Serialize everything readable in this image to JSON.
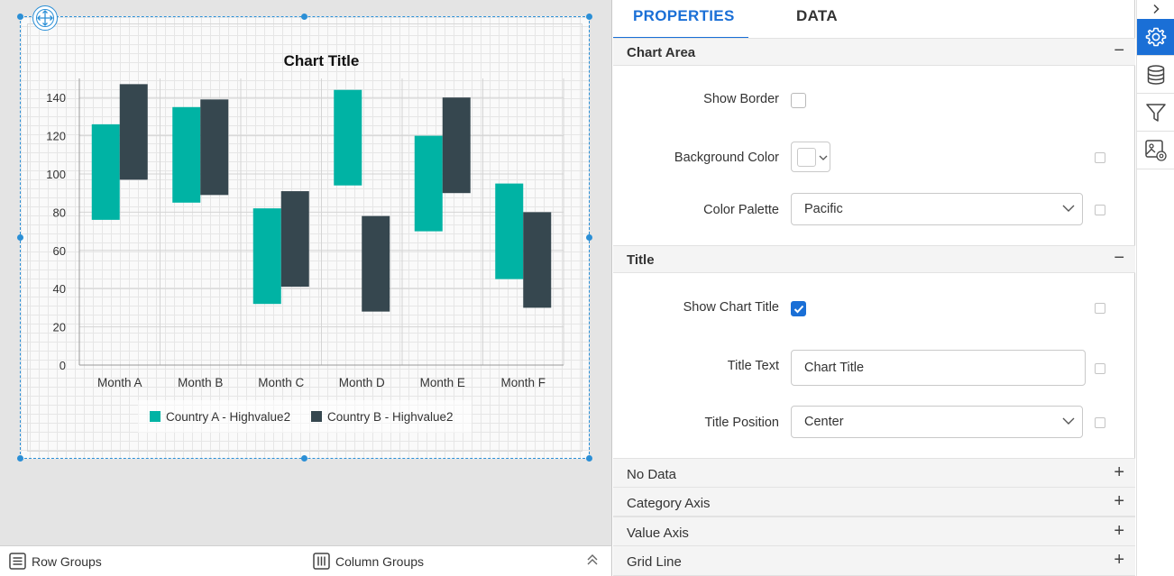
{
  "chart_data": {
    "type": "bar",
    "subtype": "range-column",
    "title": "Chart Title",
    "categories": [
      "Month A",
      "Month B",
      "Month C",
      "Month D",
      "Month E",
      "Month F"
    ],
    "series": [
      {
        "name": "Country A - Highvalue2",
        "color": "#00b3a4",
        "low": [
          76,
          85,
          32,
          94,
          70,
          45
        ],
        "high": [
          126,
          135,
          82,
          144,
          120,
          95
        ]
      },
      {
        "name": "Country B - Highvalue2",
        "color": "#36474f",
        "low": [
          97,
          89,
          41,
          28,
          90,
          30
        ],
        "high": [
          147,
          139,
          91,
          78,
          140,
          80
        ]
      }
    ],
    "yticks": [
      "0",
      "20",
      "40",
      "60",
      "80",
      "100",
      "120",
      "140"
    ],
    "ylim": [
      0,
      150
    ],
    "xlabel": "",
    "ylabel": "",
    "grid": true,
    "legend": "bottom"
  },
  "bottom_bar": {
    "row_groups": "Row Groups",
    "column_groups": "Column Groups"
  },
  "panel": {
    "tabs": {
      "properties": "PROPERTIES",
      "data": "DATA"
    },
    "sections": {
      "chart_area": "Chart Area",
      "title": "Title",
      "no_data": "No Data",
      "category_axis": "Category Axis",
      "value_axis": "Value Axis",
      "grid_line": "Grid Line"
    },
    "toggles": {
      "collapse": "−",
      "expand": "+"
    },
    "chart_area": {
      "show_border_label": "Show Border",
      "background_color_label": "Background Color",
      "background_color_value": "#ffffff",
      "color_palette_label": "Color Palette",
      "color_palette_value": "Pacific"
    },
    "title": {
      "show_chart_title_label": "Show Chart Title",
      "title_text_label": "Title Text",
      "title_text_value": "Chart Title",
      "title_position_label": "Title Position",
      "title_position_value": "Center"
    }
  },
  "icon_strip": [
    "chevron-right-icon",
    "settings-gear-icon",
    "database-icon",
    "filter-icon",
    "image-settings-icon"
  ],
  "colors": {
    "accent": "#1a6fd6",
    "selection": "#2b8fd6"
  }
}
